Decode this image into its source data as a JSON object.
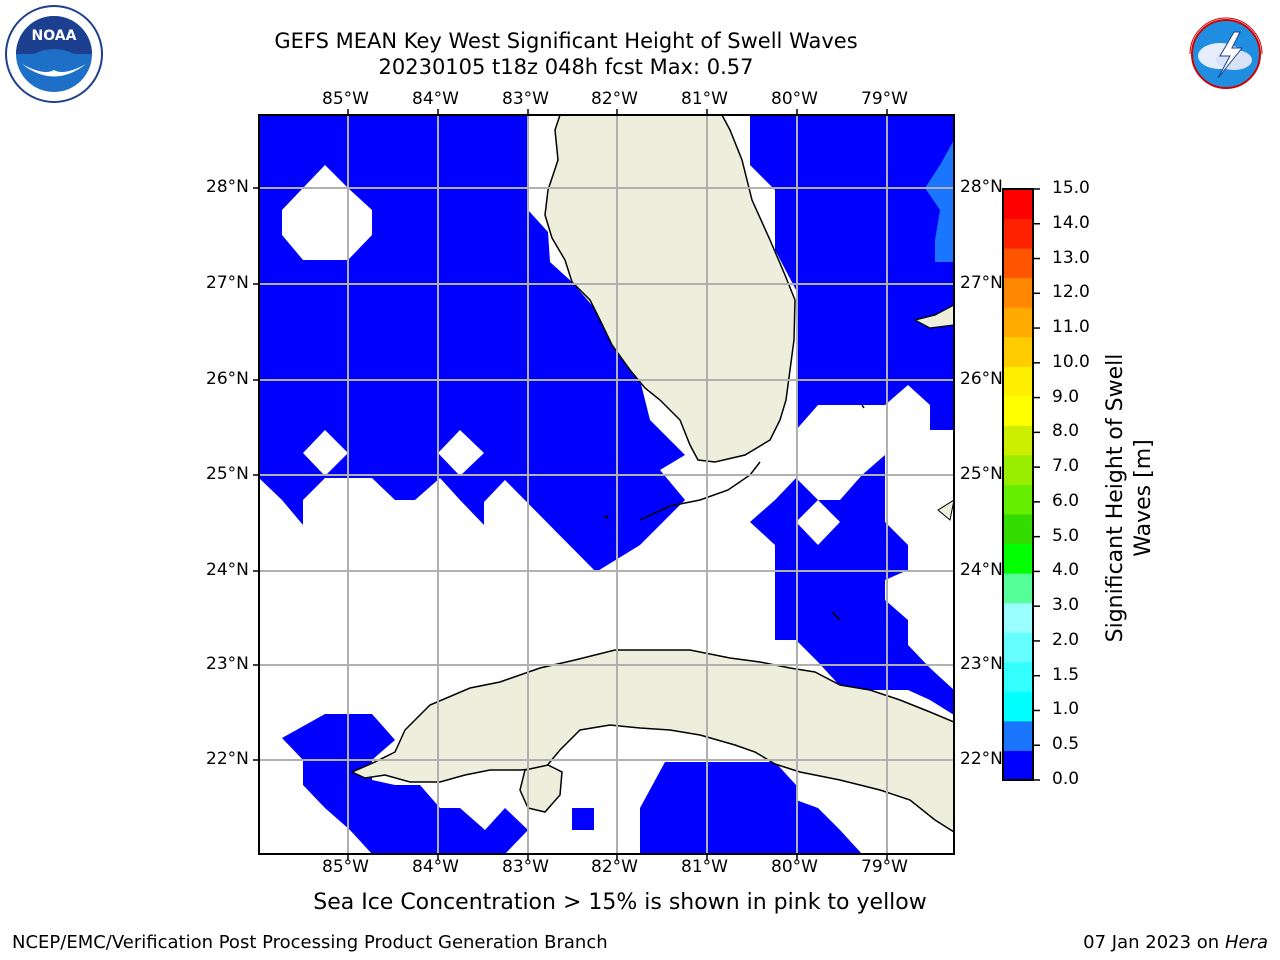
{
  "header": {
    "title_line1": "GEFS MEAN Key West Significant Height of Swell Waves",
    "title_line2": "20230105 t18z 048h fcst   Max: 0.57"
  },
  "logos": {
    "left": {
      "text": "NOAA",
      "ring_text": "NATIONAL OCEANIC AND ATMOSPHERIC ADMINISTRATION · U.S. DEPARTMENT OF COMMERCE"
    },
    "right": {
      "text": "NATIONAL WEATHER SERVICE"
    }
  },
  "map": {
    "lon_labels": [
      "85°W",
      "84°W",
      "83°W",
      "82°W",
      "81°W",
      "80°W",
      "79°W"
    ],
    "lat_labels": [
      "28°N",
      "27°N",
      "26°N",
      "25°N",
      "24°N",
      "23°N",
      "22°N"
    ],
    "colors": {
      "sea_swell": "#0000ff",
      "sea_swell_high": "#1a75ff",
      "land": "#eeeedd",
      "grid": "#b0b0b0",
      "no_data": "#ffffff"
    },
    "note": "Sea Ice Concentration > 15% is shown in pink to yellow"
  },
  "colorbar": {
    "title": "Significant Height of Swell Waves [m]",
    "ticks": [
      "15.0",
      "14.0",
      "13.0",
      "12.0",
      "11.0",
      "10.0",
      "9.0",
      "8.0",
      "7.0",
      "6.0",
      "5.0",
      "4.0",
      "3.0",
      "2.0",
      "1.5",
      "1.0",
      "0.5",
      "0.0"
    ],
    "bins_bottom_to_top": [
      "#0000ff",
      "#1a75ff",
      "#00ffff",
      "#33ffff",
      "#66ffff",
      "#99ffff",
      "#55ff99",
      "#00ff00",
      "#33dd00",
      "#66ee00",
      "#99ee00",
      "#ccee00",
      "#ffff00",
      "#ffee00",
      "#ffcc00",
      "#ffaa00",
      "#ff8800",
      "#ff5500",
      "#ff2200",
      "#ff0000"
    ]
  },
  "footer": {
    "left": "NCEP/EMC/Verification Post Processing Product Generation Branch",
    "right_prefix": "07 Jan 2023 on ",
    "right_host": "Hera"
  }
}
